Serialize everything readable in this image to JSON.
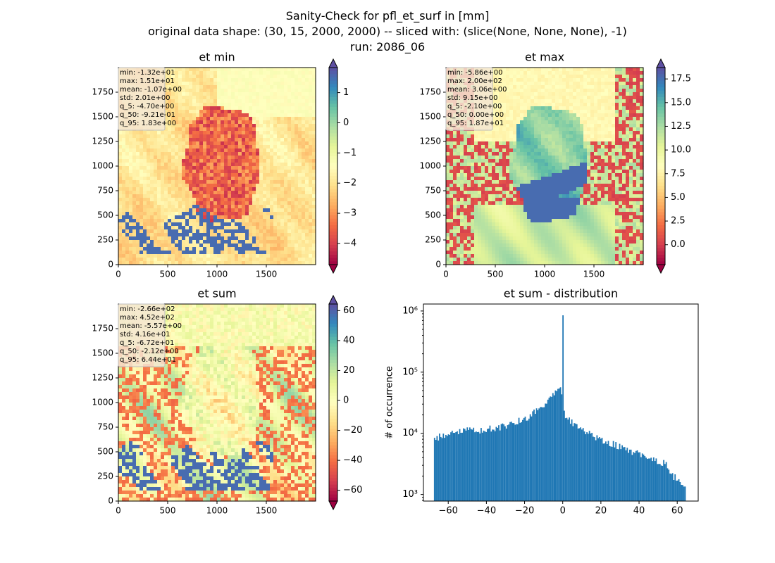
{
  "figure": {
    "title_line1": "Sanity-Check for pfl_et_surf in [mm]",
    "title_line2": "original data shape: (30, 15, 2000, 2000) -- sliced with: (slice(None, None, None), -1)",
    "title_line3": "run: 2086_06"
  },
  "chart_data": [
    {
      "type": "heatmap",
      "title": "et min",
      "colormap": "Spectral",
      "xlim": [
        0,
        2000
      ],
      "ylim": [
        0,
        2000
      ],
      "xticks": [
        0,
        500,
        1000,
        1500
      ],
      "yticks": [
        0,
        250,
        500,
        750,
        1000,
        1250,
        1500,
        1750
      ],
      "colorbar": {
        "min": -4.7,
        "max": 1.83,
        "extend": "both",
        "ticks": [
          1,
          0,
          -1,
          -2,
          -3,
          -4
        ],
        "tick_labels": [
          "1",
          "0",
          "−1",
          "−2",
          "−3",
          "−4"
        ]
      },
      "stats": [
        "min: -1.32e+01",
        "max: 1.51e+01",
        "mean: -1.07e+00",
        "std: 2.01e+00",
        "q_5: -4.70e+00",
        "q_50: -9.21e-01",
        "q_95: 1.83e+00"
      ]
    },
    {
      "type": "heatmap",
      "title": "et max",
      "colormap": "Spectral",
      "xlim": [
        0,
        2000
      ],
      "ylim": [
        0,
        2000
      ],
      "xticks": [
        0,
        500,
        1000,
        1500
      ],
      "yticks": [
        0,
        250,
        500,
        750,
        1000,
        1250,
        1500,
        1750
      ],
      "colorbar": {
        "min": -2.1,
        "max": 18.7,
        "extend": "both",
        "ticks": [
          17.5,
          15.0,
          12.5,
          10.0,
          7.5,
          5.0,
          2.5,
          0.0
        ],
        "tick_labels": [
          "17.5",
          "15.0",
          "12.5",
          "10.0",
          "7.5",
          "5.0",
          "2.5",
          "0.0"
        ]
      },
      "stats": [
        "min: -5.86e+00",
        "max: 2.00e+02",
        "mean: 3.06e+00",
        "std: 9.15e+00",
        "q_5: -2.10e+00",
        "q_50: 0.00e+00",
        "q_95: 1.87e+01"
      ]
    },
    {
      "type": "heatmap",
      "title": "et sum",
      "colormap": "Spectral",
      "xlim": [
        0,
        2000
      ],
      "ylim": [
        0,
        2000
      ],
      "xticks": [
        0,
        500,
        1000,
        1500
      ],
      "yticks": [
        0,
        250,
        500,
        750,
        1000,
        1250,
        1500,
        1750
      ],
      "colorbar": {
        "min": -67.2,
        "max": 64.4,
        "extend": "both",
        "ticks": [
          60,
          40,
          20,
          0,
          -20,
          -40,
          -60
        ],
        "tick_labels": [
          "60",
          "40",
          "20",
          "0",
          "−20",
          "−40",
          "−60"
        ]
      },
      "stats": [
        "min: -2.66e+02",
        "max: 4.52e+02",
        "mean: -5.57e+00",
        "std: 4.16e+01",
        "q_5: -6.72e+01",
        "q_50: -2.12e+00",
        "q_95: 6.44e+01"
      ]
    },
    {
      "type": "bar",
      "title": "et sum - distribution",
      "ylabel": "# of occurrence",
      "xlabel": "",
      "yscale": "log",
      "xlim": [
        -73,
        71
      ],
      "ylim": [
        780,
        1300000
      ],
      "xticks": [
        -60,
        -40,
        -20,
        0,
        20,
        40,
        60
      ],
      "xtick_labels": [
        "−60",
        "−40",
        "−20",
        "0",
        "20",
        "40",
        "60"
      ],
      "yticks": [
        1000,
        10000,
        100000,
        1000000
      ],
      "ytick_labels": [
        "10³",
        "10⁴",
        "10⁵",
        "10⁶"
      ],
      "color": "#1f77b4",
      "bins": {
        "x": [
          -67,
          -60,
          -50,
          -40,
          -30,
          -20,
          -15,
          -10,
          -5,
          -2,
          -1,
          -0.3,
          0,
          0.3,
          1,
          3,
          5,
          10,
          15,
          20,
          30,
          40,
          50,
          55,
          57,
          60,
          62,
          64
        ],
        "y": [
          8000,
          10000,
          11000,
          11500,
          13000,
          17000,
          22000,
          30000,
          45000,
          50000,
          60000,
          35000,
          850000,
          30000,
          20000,
          17000,
          15000,
          12000,
          9500,
          8000,
          6000,
          4500,
          3500,
          3000,
          2000,
          1800,
          1500,
          1200
        ]
      }
    }
  ]
}
